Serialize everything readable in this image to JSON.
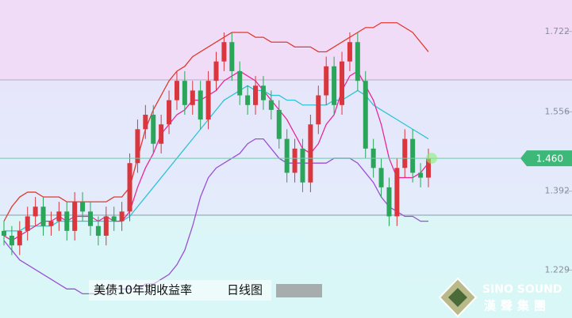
{
  "chart_data": {
    "type": "candlestick",
    "title": "美债10年期收益率",
    "subtitle": "日线图",
    "watermark": {
      "brand": "SINO SOUND",
      "brand_cn": "漢聲集團"
    },
    "ylim": [
      1.13,
      1.787
    ],
    "yticks": [
      1.722,
      1.556,
      1.392,
      1.229
    ],
    "up_color": "#d9363e",
    "down_color": "#2aa55a",
    "last_price": {
      "value": 1.46,
      "label": "1.460"
    },
    "last_price_color": "#3cb878",
    "candles": {
      "open": [
        1.31,
        1.3,
        1.28,
        1.31,
        1.34,
        1.36,
        1.32,
        1.33,
        1.35,
        1.31,
        1.37,
        1.35,
        1.32,
        1.3,
        1.34,
        1.33,
        1.35,
        1.45,
        1.52,
        1.55,
        1.49,
        1.53,
        1.58,
        1.62,
        1.57,
        1.6,
        1.54,
        1.62,
        1.66,
        1.7,
        1.64,
        1.59,
        1.57,
        1.61,
        1.58,
        1.56,
        1.5,
        1.43,
        1.48,
        1.41,
        1.53,
        1.59,
        1.65,
        1.57,
        1.66,
        1.7,
        1.62,
        1.48,
        1.44,
        1.4,
        1.34,
        1.44,
        1.5,
        1.43,
        1.42
      ],
      "high": [
        1.33,
        1.32,
        1.33,
        1.36,
        1.38,
        1.38,
        1.35,
        1.37,
        1.37,
        1.39,
        1.39,
        1.37,
        1.34,
        1.36,
        1.36,
        1.37,
        1.47,
        1.54,
        1.57,
        1.57,
        1.55,
        1.6,
        1.64,
        1.64,
        1.62,
        1.62,
        1.64,
        1.68,
        1.72,
        1.72,
        1.66,
        1.61,
        1.63,
        1.63,
        1.6,
        1.58,
        1.52,
        1.5,
        1.5,
        1.55,
        1.61,
        1.67,
        1.67,
        1.68,
        1.72,
        1.72,
        1.64,
        1.5,
        1.46,
        1.42,
        1.46,
        1.52,
        1.52,
        1.45,
        1.48
      ],
      "low": [
        1.28,
        1.26,
        1.26,
        1.29,
        1.32,
        1.3,
        1.3,
        1.31,
        1.29,
        1.29,
        1.33,
        1.3,
        1.28,
        1.28,
        1.31,
        1.31,
        1.33,
        1.43,
        1.5,
        1.47,
        1.47,
        1.51,
        1.56,
        1.55,
        1.55,
        1.52,
        1.52,
        1.6,
        1.64,
        1.62,
        1.57,
        1.55,
        1.55,
        1.56,
        1.54,
        1.48,
        1.41,
        1.41,
        1.39,
        1.39,
        1.51,
        1.57,
        1.55,
        1.55,
        1.64,
        1.6,
        1.46,
        1.42,
        1.38,
        1.32,
        1.32,
        1.42,
        1.41,
        1.4,
        1.4
      ],
      "close": [
        1.3,
        1.28,
        1.31,
        1.34,
        1.36,
        1.32,
        1.33,
        1.35,
        1.31,
        1.37,
        1.35,
        1.32,
        1.3,
        1.34,
        1.33,
        1.35,
        1.45,
        1.52,
        1.55,
        1.49,
        1.53,
        1.58,
        1.62,
        1.57,
        1.6,
        1.54,
        1.62,
        1.66,
        1.7,
        1.64,
        1.59,
        1.57,
        1.61,
        1.58,
        1.56,
        1.5,
        1.43,
        1.48,
        1.41,
        1.53,
        1.59,
        1.65,
        1.57,
        1.66,
        1.7,
        1.62,
        1.48,
        1.44,
        1.4,
        1.34,
        1.44,
        1.5,
        1.43,
        1.42,
        1.46
      ]
    },
    "series": [
      {
        "color": "#e03a2f",
        "values": [
          1.33,
          1.36,
          1.38,
          1.39,
          1.39,
          1.38,
          1.38,
          1.38,
          1.37,
          1.37,
          1.37,
          1.37,
          1.37,
          1.37,
          1.38,
          1.38,
          1.4,
          1.46,
          1.52,
          1.56,
          1.59,
          1.62,
          1.64,
          1.65,
          1.67,
          1.68,
          1.69,
          1.7,
          1.71,
          1.72,
          1.72,
          1.72,
          1.71,
          1.71,
          1.7,
          1.7,
          1.7,
          1.69,
          1.69,
          1.69,
          1.68,
          1.68,
          1.69,
          1.7,
          1.71,
          1.72,
          1.73,
          1.73,
          1.74,
          1.74,
          1.74,
          1.73,
          1.72,
          1.7,
          1.68
        ]
      },
      {
        "color": "#2ec4d6",
        "values": [
          1.31,
          1.31,
          1.31,
          1.32,
          1.32,
          1.32,
          1.32,
          1.33,
          1.33,
          1.33,
          1.33,
          1.33,
          1.33,
          1.33,
          1.33,
          1.33,
          1.34,
          1.36,
          1.38,
          1.4,
          1.42,
          1.44,
          1.46,
          1.48,
          1.5,
          1.52,
          1.54,
          1.56,
          1.58,
          1.59,
          1.6,
          1.61,
          1.6,
          1.6,
          1.59,
          1.59,
          1.58,
          1.58,
          1.57,
          1.57,
          1.57,
          1.57,
          1.58,
          1.58,
          1.59,
          1.6,
          1.59,
          1.57,
          1.56,
          1.55,
          1.54,
          1.53,
          1.52,
          1.51,
          1.5
        ]
      },
      {
        "color": "#9b4fd6",
        "values": [
          1.29,
          1.27,
          1.25,
          1.24,
          1.23,
          1.22,
          1.21,
          1.2,
          1.19,
          1.19,
          1.18,
          1.18,
          1.18,
          1.18,
          1.19,
          1.19,
          1.19,
          1.19,
          1.2,
          1.2,
          1.21,
          1.22,
          1.24,
          1.27,
          1.32,
          1.38,
          1.42,
          1.44,
          1.45,
          1.46,
          1.47,
          1.49,
          1.5,
          1.5,
          1.48,
          1.46,
          1.45,
          1.45,
          1.45,
          1.45,
          1.45,
          1.45,
          1.46,
          1.46,
          1.46,
          1.45,
          1.43,
          1.41,
          1.38,
          1.36,
          1.35,
          1.34,
          1.34,
          1.33,
          1.33
        ]
      },
      {
        "color": "#e8289a",
        "values": [
          1.3,
          1.29,
          1.3,
          1.31,
          1.32,
          1.33,
          1.33,
          1.34,
          1.33,
          1.34,
          1.34,
          1.34,
          1.33,
          1.34,
          1.33,
          1.33,
          1.35,
          1.4,
          1.44,
          1.47,
          1.51,
          1.53,
          1.55,
          1.56,
          1.58,
          1.58,
          1.59,
          1.6,
          1.62,
          1.63,
          1.64,
          1.63,
          1.62,
          1.6,
          1.58,
          1.56,
          1.54,
          1.51,
          1.48,
          1.47,
          1.49,
          1.53,
          1.55,
          1.6,
          1.63,
          1.64,
          1.61,
          1.58,
          1.53,
          1.46,
          1.42,
          1.42,
          1.42,
          1.43,
          1.45
        ]
      }
    ]
  }
}
